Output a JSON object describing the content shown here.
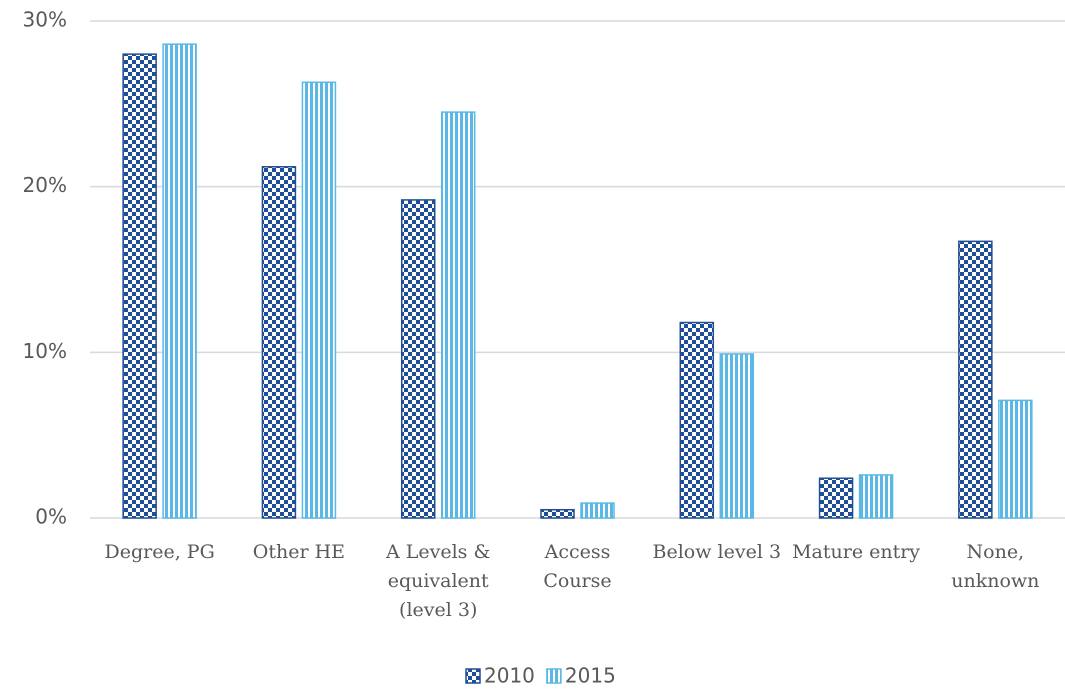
{
  "chart_data": {
    "type": "bar",
    "categories": [
      "Degree, PG",
      "Other HE",
      "A Levels & equivalent (level 3)",
      "Access Course",
      "Below level 3",
      "Mature entry",
      "None, unknown"
    ],
    "series": [
      {
        "name": "2010",
        "color": "#1f4e96",
        "pattern": "checker",
        "values": [
          28.0,
          21.2,
          19.2,
          0.5,
          11.8,
          2.4,
          16.7
        ]
      },
      {
        "name": "2015",
        "color": "#5bb8e6",
        "pattern": "stripes",
        "values": [
          28.6,
          26.3,
          24.5,
          0.9,
          9.9,
          2.6,
          7.1
        ]
      }
    ],
    "ylim": [
      0,
      30
    ],
    "yticks": [
      {
        "value": 0,
        "label": "0%"
      },
      {
        "value": 10,
        "label": "10%"
      },
      {
        "value": 20,
        "label": "20%"
      },
      {
        "value": 30,
        "label": "30%"
      }
    ],
    "grid": true,
    "legend": "bottom"
  }
}
